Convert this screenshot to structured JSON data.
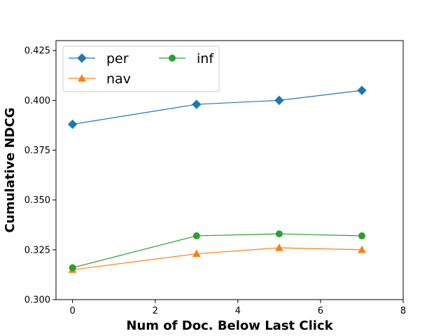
{
  "chart_data": {
    "type": "line",
    "title": "",
    "xlabel": "Num of Doc. Below Last Click",
    "ylabel": "Cumulative NDCG",
    "xlim": [
      -0.4,
      8
    ],
    "ylim": [
      0.3,
      0.43
    ],
    "x_ticks": [
      0,
      2,
      4,
      6,
      8
    ],
    "y_ticks": [
      0.3,
      0.325,
      0.35,
      0.375,
      0.4,
      0.425
    ],
    "x_tick_labels": [
      "0",
      "2",
      "4",
      "6",
      "8"
    ],
    "y_tick_labels": [
      "0.300",
      "0.325",
      "0.350",
      "0.375",
      "0.400",
      "0.425"
    ],
    "grid": false,
    "legend": {
      "position": "top-left",
      "columns": 2
    },
    "x": [
      0,
      3,
      5,
      7
    ],
    "series": [
      {
        "name": "per",
        "values": [
          0.388,
          0.398,
          0.4,
          0.405
        ],
        "color": "#1f77b4",
        "marker": "diamond"
      },
      {
        "name": "nav",
        "values": [
          0.315,
          0.323,
          0.326,
          0.325
        ],
        "color": "#ff7f0e",
        "marker": "triangle"
      },
      {
        "name": "inf",
        "values": [
          0.316,
          0.332,
          0.333,
          0.332
        ],
        "color": "#2ca02c",
        "marker": "circle"
      }
    ]
  }
}
